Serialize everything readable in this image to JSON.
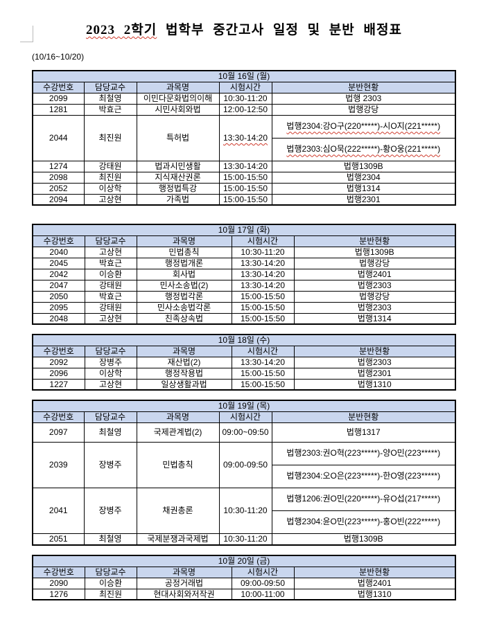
{
  "page": {
    "title_marked": "2023 2학기",
    "title_rest": "법학부 중간고사 일정 및 분반 배정표",
    "date_range": "(10/16~10/20)"
  },
  "columns": [
    "수강번호",
    "담당교수",
    "과목명",
    "시험시간",
    "분반현황"
  ],
  "colors": {
    "header_bg": "#c9d6ee",
    "squiggle_red": "#cf3a2b",
    "border": "#000000"
  },
  "tables": [
    {
      "day": "10월 16일 (월)",
      "variant": "A",
      "header_sq": [
        1,
        4
      ],
      "rows": [
        {
          "code": "2099",
          "prof": "최철영",
          "course": "이민다문화법의이해",
          "time": "10:30-11:20",
          "rooms": [
            "법행 2303"
          ],
          "sq": [
            "course",
            "time",
            "rooms"
          ]
        },
        {
          "code": "1281",
          "prof": "박효근",
          "course": "시민사회와법",
          "time": "12:00-12:50",
          "rooms": [
            "법행강당"
          ],
          "sq": [
            "course",
            "time",
            "rooms"
          ]
        },
        {
          "code": "2044",
          "prof": "최진원",
          "course": "특허법",
          "time": "13:30-14:20",
          "rooms": [
            "법행2304:강O구(220*****)-시O지(221*****)",
            "법행2303:심O묵(222*****)-황O웅(221*****)"
          ],
          "sq": [
            "time",
            "rooms"
          ]
        },
        {
          "code": "1274",
          "prof": "강태원",
          "course": "법과시민생활",
          "time": "13:30-14:20",
          "rooms": [
            "법행1309B"
          ],
          "sq": [
            "course",
            "time",
            "rooms"
          ]
        },
        {
          "code": "2098",
          "prof": "최진원",
          "course": "지식재산권론",
          "time": "15:00-15:50",
          "rooms": [
            "법행2304"
          ],
          "sq": [
            "course",
            "time",
            "rooms"
          ]
        },
        {
          "code": "2052",
          "prof": "이상학",
          "course": "행정법특강",
          "time": "15:00-15:50",
          "rooms": [
            "법행1314"
          ],
          "sq": [
            "course",
            "time",
            "rooms"
          ]
        },
        {
          "code": "2094",
          "prof": "고상현",
          "course": "가족법",
          "time": "15:00-15:50",
          "rooms": [
            "법행2301"
          ],
          "sq": [
            "prof",
            "time",
            "rooms"
          ]
        }
      ]
    },
    {
      "day": "10월 17일 (화)",
      "variant": "B",
      "header_sq": [
        1,
        4
      ],
      "rows": [
        {
          "code": "2040",
          "prof": "고상현",
          "course": "민법총칙",
          "time": "10:30-11:20",
          "rooms": [
            "법행1309B"
          ],
          "sq": [
            "prof",
            "time",
            "rooms"
          ]
        },
        {
          "code": "2045",
          "prof": "박효근",
          "course": "행정법개론",
          "time": "13:30-14:20",
          "rooms": [
            "법행강당"
          ],
          "sq": [
            "course",
            "time",
            "rooms"
          ]
        },
        {
          "code": "2042",
          "prof": "이승환",
          "course": "회사법",
          "time": "13:30-14:20",
          "rooms": [
            "법행2401"
          ],
          "sq": [
            "time",
            "rooms"
          ]
        },
        {
          "code": "2047",
          "prof": "강태원",
          "course": "민사소송법(2)",
          "time": "13:30-14:20",
          "rooms": [
            "법행2303"
          ],
          "sq": [
            "time",
            "rooms"
          ]
        },
        {
          "code": "2050",
          "prof": "박효근",
          "course": "행정법각론",
          "time": "15:00-15:50",
          "rooms": [
            "법행강당"
          ],
          "sq": [
            "course",
            "time",
            "rooms"
          ]
        },
        {
          "code": "2095",
          "prof": "강태원",
          "course": "민사소송법각론",
          "time": "15:00-15:50",
          "rooms": [
            "법행2303"
          ],
          "sq": [
            "course",
            "time",
            "rooms"
          ]
        },
        {
          "code": "2048",
          "prof": "고상현",
          "course": "친족상속법",
          "time": "15:00-15:50",
          "rooms": [
            "법행1314"
          ],
          "sq": [
            "prof",
            "time",
            "rooms"
          ]
        }
      ]
    },
    {
      "day": "10월 18일 (수)",
      "variant": "B",
      "header_sq": [
        1,
        4
      ],
      "rows": [
        {
          "code": "2092",
          "prof": "장병주",
          "course": "재산법(2)",
          "time": "13:30-14:20",
          "rooms": [
            "법행2303"
          ],
          "sq": []
        },
        {
          "code": "2096",
          "prof": "이상학",
          "course": "행정작용법",
          "time": "15:00-15:50",
          "rooms": [
            "법행2301"
          ],
          "sq": []
        },
        {
          "code": "1227",
          "prof": "고상현",
          "course": "일상생활과법",
          "time": "15:00-15:50",
          "rooms": [
            "법행1310"
          ],
          "sq": []
        }
      ]
    },
    {
      "day": "10월 19일 (목)",
      "variant": "A",
      "header_sq": [],
      "rows": [
        {
          "code": "2097",
          "prof": "최철영",
          "course": "국제관계법(2)",
          "time": "09:00~09:50",
          "rooms": [
            "법행1317"
          ],
          "sq": [],
          "h": 28
        },
        {
          "code": "2039",
          "prof": "장병주",
          "course": "민법총칙",
          "time": "09:00-09:50",
          "rooms": [
            "법행2303:권O혁(223*****)-양O민(223*****)",
            "법행2304:오O은(223*****)-한O영(223*****)"
          ],
          "sq": []
        },
        {
          "code": "2041",
          "prof": "장병주",
          "course": "채권총론",
          "time": "10:30-11:20",
          "rooms": [
            "법행1206:권O민(220*****)-유O섭(217*****)",
            "법행2304:윤O민(223*****)-홍O빈(222*****)"
          ],
          "sq": []
        },
        {
          "code": "2051",
          "prof": "최철영",
          "course": "국제분쟁과국제법",
          "time": "10:30-11:20",
          "rooms": [
            "법행1309B"
          ],
          "sq": [],
          "h": 17
        }
      ]
    },
    {
      "day": "10월 20일 (금)",
      "variant": "B",
      "header_sq": [
        1,
        4
      ],
      "rows": [
        {
          "code": "2090",
          "prof": "이승환",
          "course": "공정거래법",
          "time": "09:00-09:50",
          "rooms": [
            "법행2401"
          ],
          "sq": []
        },
        {
          "code": "1276",
          "prof": "최진원",
          "course": "현대사회와저작권",
          "time": "10:00-11:00",
          "rooms": [
            "법행1310"
          ],
          "sq": []
        }
      ]
    }
  ]
}
